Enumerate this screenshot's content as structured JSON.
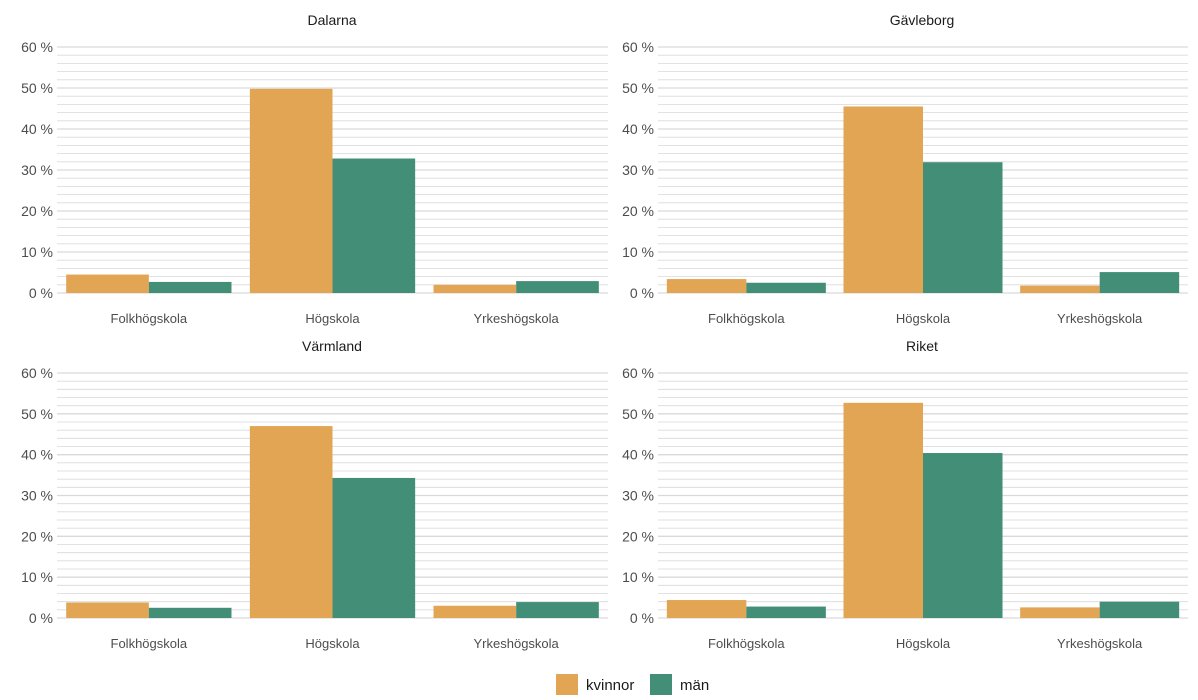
{
  "chart_data": [
    {
      "type": "bar",
      "title": "Dalarna",
      "categories": [
        "Folkhögskola",
        "Högskola",
        "Yrkeshögskola"
      ],
      "series": [
        {
          "name": "kvinnor",
          "values": [
            4.5,
            49.8,
            2.0
          ]
        },
        {
          "name": "män",
          "values": [
            2.7,
            32.8,
            2.9
          ]
        }
      ],
      "ylim": [
        0,
        60
      ],
      "yticks": [
        "0 %",
        "10 %",
        "20 %",
        "30 %",
        "40 %",
        "50 %",
        "60 %"
      ]
    },
    {
      "type": "bar",
      "title": "Gävleborg",
      "categories": [
        "Folkhögskola",
        "Högskola",
        "Yrkeshögskola"
      ],
      "series": [
        {
          "name": "kvinnor",
          "values": [
            3.4,
            45.5,
            1.8
          ]
        },
        {
          "name": "män",
          "values": [
            2.5,
            31.9,
            5.1
          ]
        }
      ],
      "ylim": [
        0,
        60
      ],
      "yticks": [
        "0 %",
        "10 %",
        "20 %",
        "30 %",
        "40 %",
        "50 %",
        "60 %"
      ]
    },
    {
      "type": "bar",
      "title": "Värmland",
      "categories": [
        "Folkhögskola",
        "Högskola",
        "Yrkeshögskola"
      ],
      "series": [
        {
          "name": "kvinnor",
          "values": [
            3.8,
            47.0,
            3.0
          ]
        },
        {
          "name": "män",
          "values": [
            2.5,
            34.3,
            3.9
          ]
        }
      ],
      "ylim": [
        0,
        60
      ],
      "yticks": [
        "0 %",
        "10 %",
        "20 %",
        "30 %",
        "40 %",
        "50 %",
        "60 %"
      ]
    },
    {
      "type": "bar",
      "title": "Riket",
      "categories": [
        "Folkhögskola",
        "Högskola",
        "Yrkeshögskola"
      ],
      "series": [
        {
          "name": "kvinnor",
          "values": [
            4.4,
            52.7,
            2.6
          ]
        },
        {
          "name": "män",
          "values": [
            2.8,
            40.4,
            4.0
          ]
        }
      ],
      "ylim": [
        0,
        60
      ],
      "yticks": [
        "0 %",
        "10 %",
        "20 %",
        "30 %",
        "40 %",
        "50 %",
        "60 %"
      ]
    }
  ],
  "legend": {
    "placement": "bottom",
    "items": [
      {
        "label": "kvinnor",
        "color": "#E2A553"
      },
      {
        "label": "män",
        "color": "#428E77"
      }
    ]
  },
  "style": {
    "series_colors": [
      "#E2A553",
      "#428E77"
    ],
    "grid": true,
    "grid_color": "#d9d9d9",
    "axis_text_color": "#4d4d4d",
    "title_color": "#1a1a1a"
  }
}
